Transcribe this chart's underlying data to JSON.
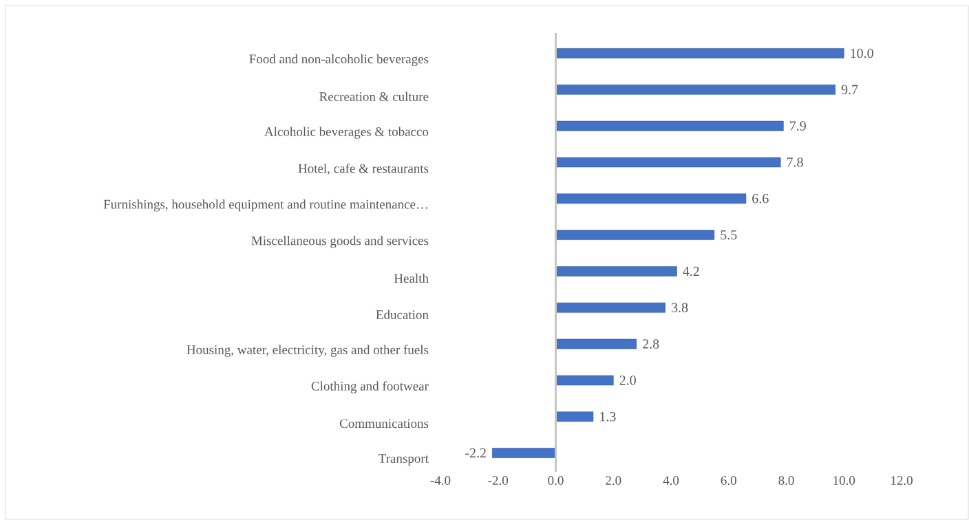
{
  "chart_data": {
    "type": "bar",
    "orientation": "horizontal",
    "categories": [
      "Food and non-alcoholic beverages",
      "Recreation & culture",
      "Alcoholic beverages & tobacco",
      "Hotel, cafe & restaurants",
      "Furnishings, household equipment and routine maintenance…",
      "Miscellaneous goods and services",
      "Health",
      "Education",
      "Housing, water, electricity, gas and other fuels",
      "Clothing and footwear",
      "Communications",
      "Transport"
    ],
    "values": [
      10.0,
      9.7,
      7.9,
      7.8,
      6.6,
      5.5,
      4.2,
      3.8,
      2.8,
      2.0,
      1.3,
      -2.2
    ],
    "value_labels": [
      "10.0",
      "9.7",
      "7.9",
      "7.8",
      "6.6",
      "5.5",
      "4.2",
      "3.8",
      "2.8",
      "2.0",
      "1.3",
      "-2.2"
    ],
    "color": "#4472c4",
    "xlim": [
      -4,
      12
    ],
    "xticks": [
      {
        "value": -4,
        "label": "-4.0"
      },
      {
        "value": -2,
        "label": "-2.0"
      },
      {
        "value": 0,
        "label": "0.0"
      },
      {
        "value": 2,
        "label": "2.0"
      },
      {
        "value": 4,
        "label": "4.0"
      },
      {
        "value": 6,
        "label": "6.0"
      },
      {
        "value": 8,
        "label": "8.0"
      },
      {
        "value": 10,
        "label": "10.0"
      },
      {
        "value": 12,
        "label": "12.0"
      }
    ]
  }
}
